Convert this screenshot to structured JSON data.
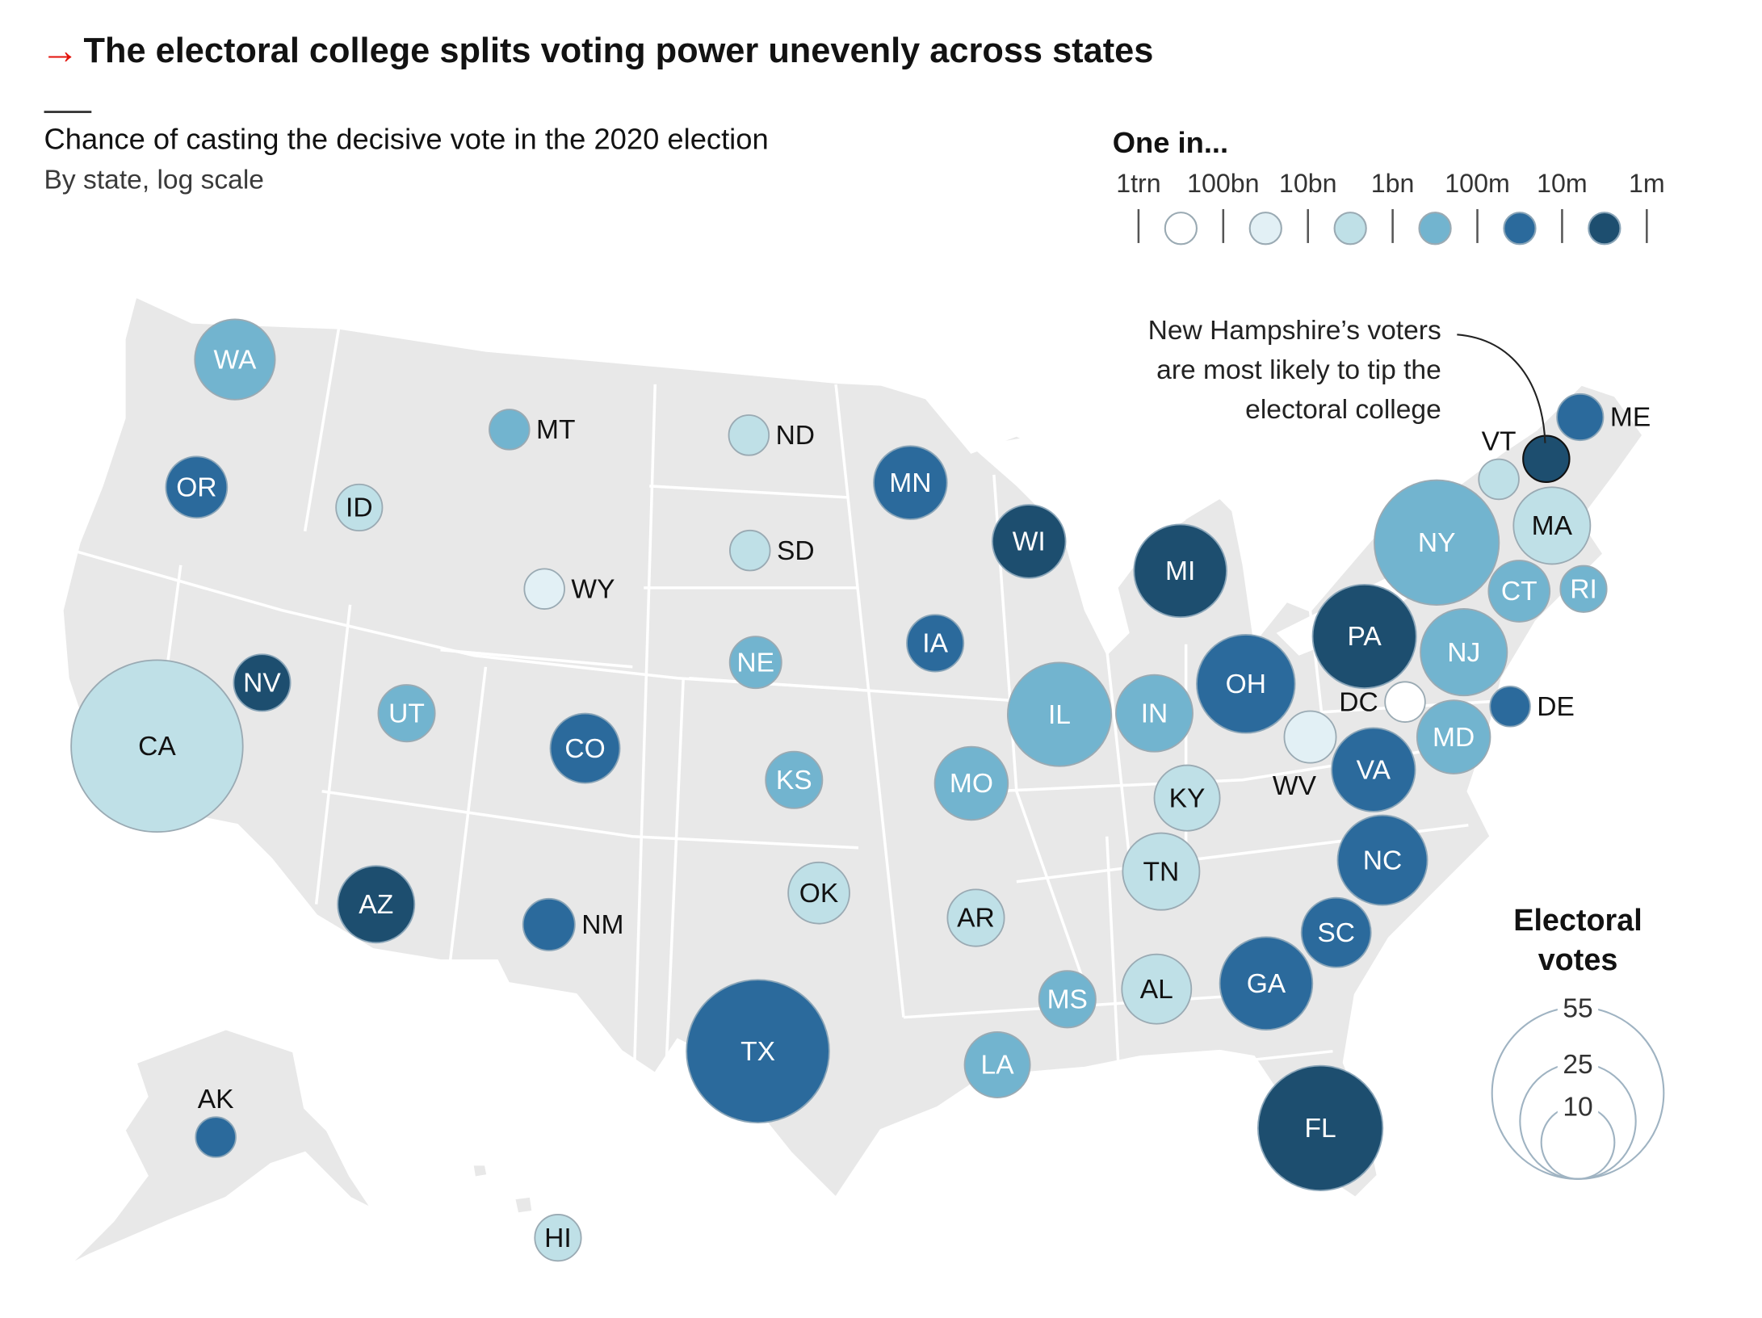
{
  "header": {
    "arrow": "→",
    "title": "The electoral college splits voting power unevenly across states",
    "subtitle": "Chance of casting the decisive vote in the 2020 election",
    "subtitle2": "By state, log scale"
  },
  "color_legend": {
    "title": "One in...",
    "ticks": [
      "1trn",
      "100bn",
      "10bn",
      "1bn",
      "100m",
      "10m",
      "1m"
    ],
    "colors": [
      "#ffffff",
      "#e2f0f5",
      "#bfe0e7",
      "#72b4cf",
      "#2b6a9c",
      "#1d4e6f"
    ]
  },
  "size_legend": {
    "title_line1": "Electoral",
    "title_line2": "votes",
    "values": [
      "55",
      "25",
      "10"
    ]
  },
  "annotation": {
    "lines": [
      "New Hampshire’s voters",
      "are most likely to tip the",
      "electoral college"
    ]
  },
  "chart_data": {
    "type": "bubble-map",
    "title": "The electoral college splits voting power unevenly across states",
    "subtitle": "Chance of casting the decisive vote in the 2020 election",
    "note": "By state, log scale",
    "color_scale": "odds bucket (0 = 1 in 1trn–100bn … 5 = 1 in 10m–1m)",
    "size_scale": "electoral votes",
    "states": [
      {
        "code": "WA",
        "votes": 12,
        "bucket": 3
      },
      {
        "code": "OR",
        "votes": 7,
        "bucket": 4
      },
      {
        "code": "CA",
        "votes": 55,
        "bucket": 2
      },
      {
        "code": "NV",
        "votes": 6,
        "bucket": 5
      },
      {
        "code": "ID",
        "votes": 4,
        "bucket": 2
      },
      {
        "code": "MT",
        "votes": 3,
        "bucket": 3
      },
      {
        "code": "WY",
        "votes": 3,
        "bucket": 1
      },
      {
        "code": "UT",
        "votes": 6,
        "bucket": 3
      },
      {
        "code": "AZ",
        "votes": 11,
        "bucket": 5
      },
      {
        "code": "CO",
        "votes": 9,
        "bucket": 4
      },
      {
        "code": "NM",
        "votes": 5,
        "bucket": 4
      },
      {
        "code": "ND",
        "votes": 3,
        "bucket": 2
      },
      {
        "code": "SD",
        "votes": 3,
        "bucket": 2
      },
      {
        "code": "NE",
        "votes": 5,
        "bucket": 3
      },
      {
        "code": "KS",
        "votes": 6,
        "bucket": 3
      },
      {
        "code": "OK",
        "votes": 7,
        "bucket": 2
      },
      {
        "code": "TX",
        "votes": 38,
        "bucket": 4
      },
      {
        "code": "MN",
        "votes": 10,
        "bucket": 4
      },
      {
        "code": "IA",
        "votes": 6,
        "bucket": 4
      },
      {
        "code": "MO",
        "votes": 10,
        "bucket": 3
      },
      {
        "code": "AR",
        "votes": 6,
        "bucket": 2
      },
      {
        "code": "LA",
        "votes": 8,
        "bucket": 3
      },
      {
        "code": "WI",
        "votes": 10,
        "bucket": 5
      },
      {
        "code": "IL",
        "votes": 20,
        "bucket": 3
      },
      {
        "code": "MI",
        "votes": 16,
        "bucket": 5
      },
      {
        "code": "IN",
        "votes": 11,
        "bucket": 3
      },
      {
        "code": "OH",
        "votes": 18,
        "bucket": 4
      },
      {
        "code": "KY",
        "votes": 8,
        "bucket": 2
      },
      {
        "code": "TN",
        "votes": 11,
        "bucket": 2
      },
      {
        "code": "MS",
        "votes": 6,
        "bucket": 3
      },
      {
        "code": "AL",
        "votes": 9,
        "bucket": 2
      },
      {
        "code": "GA",
        "votes": 16,
        "bucket": 4
      },
      {
        "code": "FL",
        "votes": 29,
        "bucket": 5
      },
      {
        "code": "SC",
        "votes": 9,
        "bucket": 4
      },
      {
        "code": "NC",
        "votes": 15,
        "bucket": 4
      },
      {
        "code": "VA",
        "votes": 13,
        "bucket": 4
      },
      {
        "code": "WV",
        "votes": 5,
        "bucket": 1
      },
      {
        "code": "DC",
        "votes": 3,
        "bucket": 0
      },
      {
        "code": "MD",
        "votes": 10,
        "bucket": 3
      },
      {
        "code": "DE",
        "votes": 3,
        "bucket": 4
      },
      {
        "code": "PA",
        "votes": 20,
        "bucket": 5
      },
      {
        "code": "NJ",
        "votes": 14,
        "bucket": 3
      },
      {
        "code": "NY",
        "votes": 29,
        "bucket": 3
      },
      {
        "code": "CT",
        "votes": 7,
        "bucket": 3
      },
      {
        "code": "RI",
        "votes": 4,
        "bucket": 3
      },
      {
        "code": "MA",
        "votes": 11,
        "bucket": 2
      },
      {
        "code": "VT",
        "votes": 3,
        "bucket": 2
      },
      {
        "code": "NH",
        "votes": 4,
        "bucket": 5
      },
      {
        "code": "ME",
        "votes": 4,
        "bucket": 4
      },
      {
        "code": "AK",
        "votes": 3,
        "bucket": 4
      },
      {
        "code": "HI",
        "votes": 4,
        "bucket": 2
      }
    ]
  }
}
